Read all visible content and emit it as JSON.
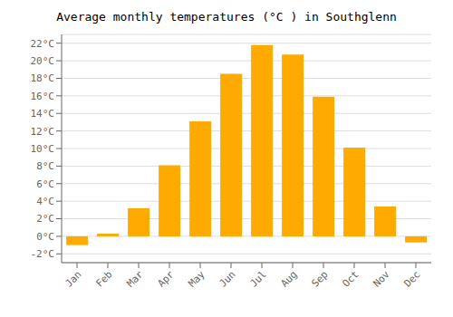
{
  "chart_data": {
    "type": "bar",
    "title": "Average monthly temperatures (°C ) in Southglenn",
    "categories": [
      "Jan",
      "Feb",
      "Mar",
      "Apr",
      "May",
      "Jun",
      "Jul",
      "Aug",
      "Sep",
      "Oct",
      "Nov",
      "Dec"
    ],
    "values": [
      -1.0,
      0.3,
      3.2,
      8.1,
      13.1,
      18.5,
      21.8,
      20.7,
      15.9,
      10.1,
      3.4,
      -0.7
    ],
    "color": "#FFAA00",
    "ylim": [
      -3,
      23
    ],
    "yticks": [
      {
        "value": -2,
        "label": "-2°C"
      },
      {
        "value": 0,
        "label": "0°C"
      },
      {
        "value": 2,
        "label": "2°C"
      },
      {
        "value": 4,
        "label": "4°C"
      },
      {
        "value": 6,
        "label": "6°C"
      },
      {
        "value": 8,
        "label": "8°C"
      },
      {
        "value": 10,
        "label": "10°C"
      },
      {
        "value": 12,
        "label": "12°C"
      },
      {
        "value": 14,
        "label": "14°C"
      },
      {
        "value": 16,
        "label": "16°C"
      },
      {
        "value": 18,
        "label": "18°C"
      },
      {
        "value": 20,
        "label": "20°C"
      },
      {
        "value": 22,
        "label": "22°C"
      }
    ],
    "grid": true
  }
}
